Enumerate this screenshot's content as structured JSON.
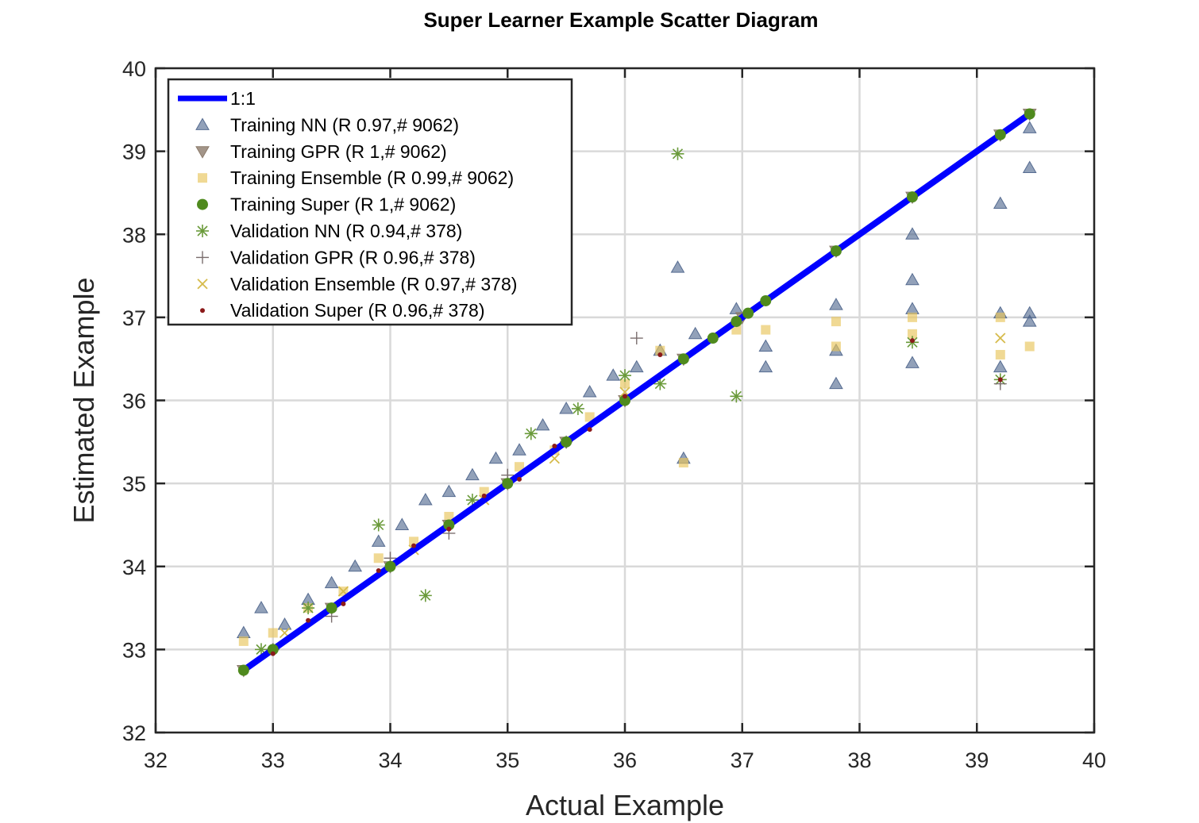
{
  "chart_data": {
    "type": "scatter",
    "title": "Super Learner Example Scatter Diagram",
    "xlabel": "Actual Example",
    "ylabel": "Estimated Example",
    "xlim": [
      32,
      40
    ],
    "ylim": [
      32,
      40
    ],
    "xticks": [
      "32",
      "33",
      "34",
      "35",
      "36",
      "37",
      "38",
      "39",
      "40"
    ],
    "yticks": [
      "32",
      "33",
      "34",
      "35",
      "36",
      "37",
      "38",
      "39",
      "40"
    ],
    "grid": true,
    "legend_position": "top-left",
    "series": [
      {
        "name": "1:1",
        "kind": "line",
        "color": "#0000ff",
        "x": [
          32.75,
          39.45
        ],
        "y": [
          32.75,
          39.45
        ]
      },
      {
        "name": "Training NN (R 0.97,# 9062)",
        "kind": "triangle-up",
        "color": "#4a628a",
        "x": [
          32.75,
          32.9,
          33.1,
          33.3,
          33.5,
          33.7,
          33.9,
          34.1,
          34.3,
          34.5,
          34.7,
          34.9,
          35.1,
          35.3,
          35.5,
          35.7,
          35.9,
          36.1,
          36.3,
          36.45,
          36.5,
          36.6,
          36.95,
          37.2,
          37.2,
          37.8,
          37.8,
          37.8,
          38.45,
          38.45,
          38.45,
          38.45,
          39.2,
          39.2,
          39.2,
          39.45,
          39.45,
          39.45,
          39.45
        ],
        "y": [
          33.2,
          33.5,
          33.3,
          33.6,
          33.8,
          34.0,
          34.3,
          34.5,
          34.8,
          34.9,
          35.1,
          35.3,
          35.4,
          35.7,
          35.9,
          36.1,
          36.3,
          36.4,
          36.6,
          37.6,
          35.3,
          36.8,
          37.1,
          36.65,
          36.4,
          37.15,
          36.6,
          36.2,
          38.0,
          37.45,
          37.1,
          36.45,
          38.37,
          37.05,
          36.4,
          39.28,
          38.8,
          37.05,
          36.95
        ]
      },
      {
        "name": "Training GPR (R 1,# 9062)",
        "kind": "triangle-down",
        "color": "#8c7b6b",
        "x": [
          32.75,
          33.5,
          34.0,
          34.5,
          35.0,
          35.5,
          36.0,
          36.5,
          37.0,
          37.8,
          38.45,
          39.2,
          39.45
        ],
        "y": [
          32.75,
          33.5,
          34.0,
          34.5,
          35.0,
          35.5,
          36.0,
          36.5,
          37.0,
          37.8,
          38.45,
          39.2,
          39.45
        ]
      },
      {
        "name": "Training Ensemble (R 0.99,# 9062)",
        "kind": "square",
        "color": "#e8c55a",
        "x": [
          32.75,
          33.0,
          33.3,
          33.6,
          33.9,
          34.2,
          34.5,
          34.8,
          35.1,
          35.4,
          35.7,
          36.0,
          36.3,
          36.5,
          36.95,
          37.2,
          37.8,
          37.8,
          38.45,
          38.45,
          39.2,
          39.2,
          39.45
        ],
        "y": [
          33.1,
          33.2,
          33.5,
          33.7,
          34.1,
          34.3,
          34.6,
          34.9,
          35.2,
          35.4,
          35.8,
          36.2,
          36.6,
          35.25,
          36.85,
          36.85,
          36.95,
          36.65,
          37.0,
          36.8,
          37.0,
          36.55,
          36.65
        ]
      },
      {
        "name": "Training Super (R 1,# 9062)",
        "kind": "circle",
        "color": "#4f8a1e",
        "x": [
          32.75,
          33.0,
          33.5,
          34.0,
          34.5,
          35.0,
          35.5,
          36.0,
          36.5,
          36.75,
          36.95,
          37.05,
          37.2,
          37.8,
          38.45,
          39.2,
          39.45
        ],
        "y": [
          32.75,
          33.0,
          33.5,
          34.0,
          34.5,
          35.0,
          35.5,
          36.0,
          36.5,
          36.75,
          36.95,
          37.05,
          37.2,
          37.8,
          38.45,
          39.2,
          39.45
        ]
      },
      {
        "name": "Validation NN (R 0.94,# 378)",
        "kind": "asterisk",
        "color": "#6a9a3a",
        "x": [
          32.9,
          33.3,
          33.9,
          34.3,
          34.7,
          35.2,
          35.6,
          36.0,
          36.3,
          36.45,
          36.95,
          38.45,
          39.2
        ],
        "y": [
          33.0,
          33.5,
          34.5,
          33.65,
          34.8,
          35.6,
          35.9,
          36.3,
          36.2,
          38.97,
          36.05,
          36.7,
          36.25
        ]
      },
      {
        "name": "Validation GPR (R 0.96,# 378)",
        "kind": "plus",
        "color": "#7a6e6e",
        "x": [
          33.0,
          33.5,
          34.0,
          34.5,
          35.0,
          35.5,
          36.1,
          39.2
        ],
        "y": [
          33.0,
          33.4,
          34.1,
          34.4,
          35.1,
          35.5,
          36.75,
          36.2
        ]
      },
      {
        "name": "Validation Ensemble (R 0.97,# 378)",
        "kind": "x",
        "color": "#d6bb4c",
        "x": [
          33.1,
          33.6,
          34.2,
          34.8,
          35.4,
          36.0,
          39.2
        ],
        "y": [
          33.2,
          33.7,
          34.2,
          34.8,
          35.3,
          36.1,
          36.75
        ]
      },
      {
        "name": "Validation Super (R 0.96,# 378)",
        "kind": "dot",
        "color": "#8b1a1a",
        "x": [
          33.0,
          33.3,
          33.6,
          33.9,
          34.2,
          34.5,
          34.8,
          35.1,
          35.4,
          35.7,
          36.0,
          36.3,
          38.45,
          39.2
        ],
        "y": [
          32.95,
          33.35,
          33.55,
          33.95,
          34.25,
          34.45,
          34.85,
          35.05,
          35.45,
          35.65,
          36.05,
          36.55,
          36.72,
          36.25
        ]
      }
    ]
  }
}
